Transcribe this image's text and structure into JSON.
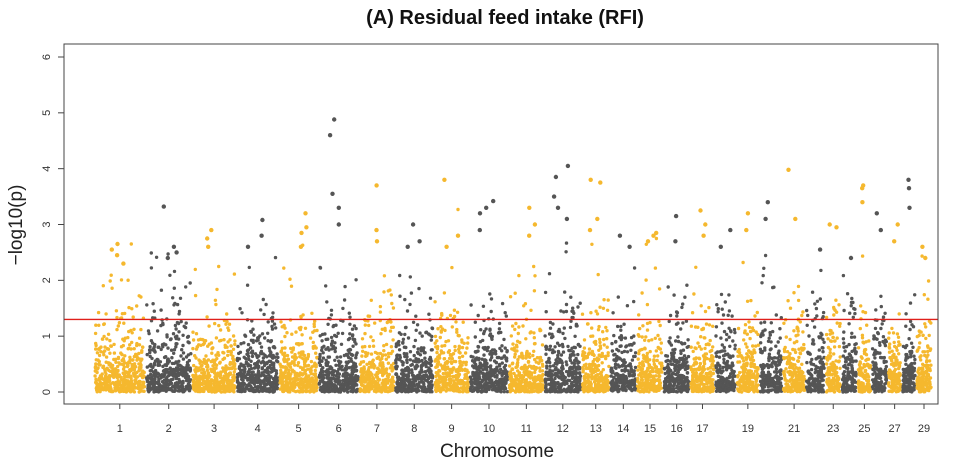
{
  "chart_data": {
    "type": "scatter",
    "title": "(A) Residual feed intake (RFI)",
    "xlabel": "Chromosome",
    "ylabel": "−log10(p)",
    "ylim": [
      0,
      6
    ],
    "yticks": [
      "0",
      "1",
      "2",
      "3",
      "4",
      "5",
      "6"
    ],
    "xtick_labels": [
      "1",
      "2",
      "3",
      "4",
      "5",
      "6",
      "7",
      "8",
      "9",
      "10",
      "11",
      "12",
      "13",
      "14",
      "15",
      "16",
      "17",
      "19",
      "21",
      "23",
      "25",
      "27",
      "29"
    ],
    "threshold": 1.3,
    "grid": false,
    "legend": "none",
    "colors": {
      "odd": "#f5b82e",
      "even": "#555555",
      "threshold": "#e0201b"
    },
    "chromosomes": [
      {
        "chr": 1,
        "max": 2.8,
        "peaks": [
          2.65,
          2.55,
          2.45,
          2.3
        ]
      },
      {
        "chr": 2,
        "max": 3.3,
        "peaks": [
          3.32,
          2.6,
          2.5,
          2.4
        ]
      },
      {
        "chr": 3,
        "max": 2.9,
        "peaks": [
          2.9,
          2.75,
          2.6
        ]
      },
      {
        "chr": 4,
        "max": 3.1,
        "peaks": [
          3.08,
          2.8,
          2.6
        ]
      },
      {
        "chr": 5,
        "max": 3.2,
        "peaks": [
          3.2,
          2.95,
          2.85,
          2.6
        ]
      },
      {
        "chr": 6,
        "max": 4.9,
        "peaks": [
          4.88,
          4.6,
          3.55,
          3.3,
          3.0
        ]
      },
      {
        "chr": 7,
        "max": 3.7,
        "peaks": [
          3.7,
          2.9,
          2.7
        ]
      },
      {
        "chr": 8,
        "max": 3.0,
        "peaks": [
          3.0,
          2.7,
          2.6
        ]
      },
      {
        "chr": 9,
        "max": 3.8,
        "peaks": [
          3.8,
          2.8,
          2.6
        ]
      },
      {
        "chr": 10,
        "max": 3.4,
        "peaks": [
          3.42,
          3.3,
          3.2,
          2.9
        ]
      },
      {
        "chr": 11,
        "max": 3.3,
        "peaks": [
          3.3,
          3.0,
          2.8
        ]
      },
      {
        "chr": 12,
        "max": 4.05,
        "peaks": [
          4.05,
          3.85,
          3.5,
          3.3,
          3.1
        ]
      },
      {
        "chr": 13,
        "max": 3.8,
        "peaks": [
          3.8,
          3.75,
          3.1,
          2.9
        ]
      },
      {
        "chr": 14,
        "max": 2.8,
        "peaks": [
          2.8,
          2.6
        ]
      },
      {
        "chr": 15,
        "max": 2.9,
        "peaks": [
          2.85,
          2.8,
          2.7
        ]
      },
      {
        "chr": 16,
        "max": 3.15,
        "peaks": [
          3.15,
          2.7
        ]
      },
      {
        "chr": 17,
        "max": 3.25,
        "peaks": [
          3.25,
          3.0,
          2.8
        ]
      },
      {
        "chr": 18,
        "max": 3.0,
        "peaks": [
          2.9,
          2.6
        ]
      },
      {
        "chr": 19,
        "max": 3.2,
        "peaks": [
          3.2,
          2.9
        ]
      },
      {
        "chr": 20,
        "max": 3.4,
        "peaks": [
          3.4,
          3.1
        ]
      },
      {
        "chr": 21,
        "max": 4.0,
        "peaks": [
          3.98,
          3.1
        ]
      },
      {
        "chr": 22,
        "max": 2.6,
        "peaks": [
          2.55
        ]
      },
      {
        "chr": 23,
        "max": 3.0,
        "peaks": [
          3.0,
          2.95
        ]
      },
      {
        "chr": 24,
        "max": 2.4,
        "peaks": [
          2.4
        ]
      },
      {
        "chr": 25,
        "max": 3.7,
        "peaks": [
          3.7,
          3.65,
          3.4
        ]
      },
      {
        "chr": 26,
        "max": 3.2,
        "peaks": [
          3.2,
          2.9
        ]
      },
      {
        "chr": 27,
        "max": 3.0,
        "peaks": [
          3.0,
          2.7
        ]
      },
      {
        "chr": 28,
        "max": 3.8,
        "peaks": [
          3.8,
          3.65,
          3.3
        ]
      },
      {
        "chr": 29,
        "max": 2.6,
        "peaks": [
          2.6,
          2.4
        ]
      }
    ]
  }
}
